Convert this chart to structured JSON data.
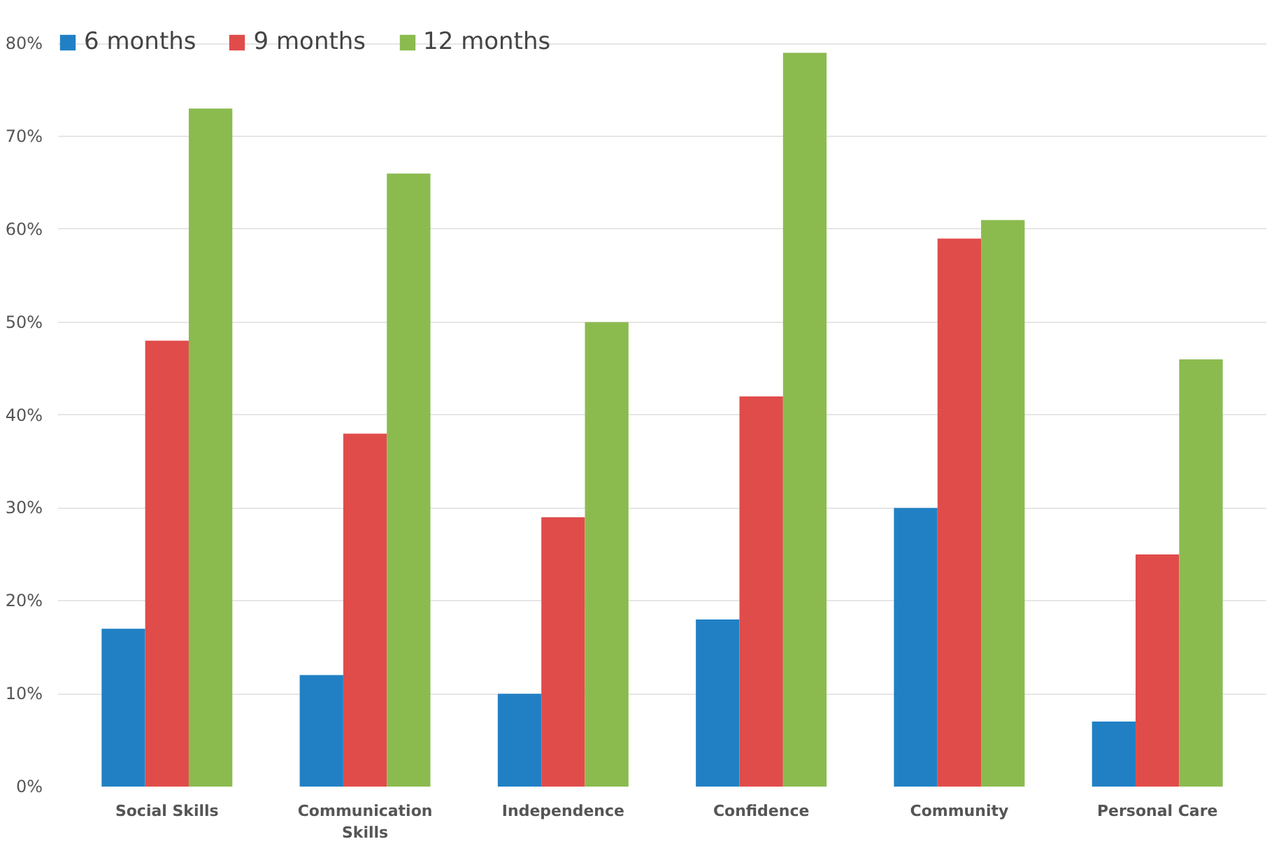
{
  "chart_data": {
    "type": "bar",
    "categories": [
      "Social Skills",
      "Communication Skills",
      "Independence",
      "Confidence",
      "Community",
      "Personal Care"
    ],
    "series": [
      {
        "name": "6 months",
        "color": "#2180c4",
        "values": [
          17,
          12,
          10,
          18,
          30,
          7
        ]
      },
      {
        "name": "9 months",
        "color": "#e04c4a",
        "values": [
          48,
          38,
          29,
          42,
          59,
          25
        ]
      },
      {
        "name": "12 months",
        "color": "#8bbb4f",
        "values": [
          73,
          66,
          50,
          79,
          61,
          46
        ]
      }
    ],
    "ylim": [
      0,
      80
    ],
    "yticks": [
      {
        "value": 0,
        "label": "0%"
      },
      {
        "value": 10,
        "label": "10%"
      },
      {
        "value": 20,
        "label": "20%"
      },
      {
        "value": 30,
        "label": "30%"
      },
      {
        "value": 40,
        "label": "40%"
      },
      {
        "value": 50,
        "label": "50%"
      },
      {
        "value": 60,
        "label": "60%"
      },
      {
        "value": 70,
        "label": "70%"
      },
      {
        "value": 80,
        "label": "80%"
      }
    ],
    "grid": "y",
    "legend": "top left"
  }
}
